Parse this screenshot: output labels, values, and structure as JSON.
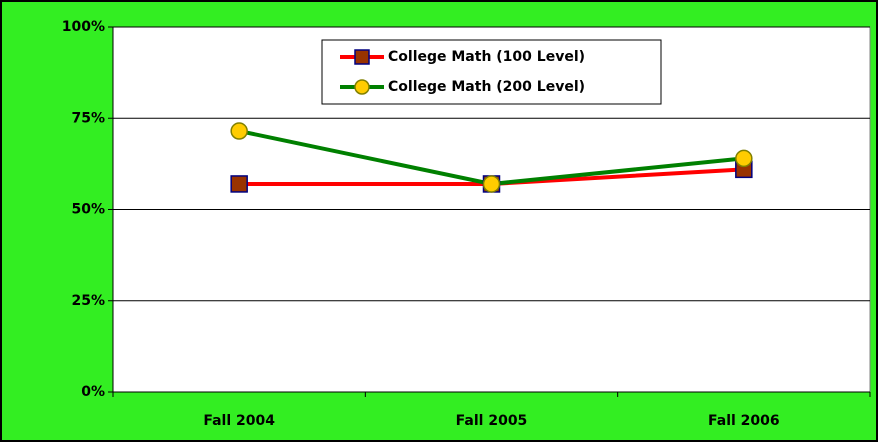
{
  "chart_data": {
    "type": "line",
    "categories": [
      "Fall 2004",
      "Fall 2005",
      "Fall 2006"
    ],
    "series": [
      {
        "name": "College Math (100 Level)",
        "color": "#ff0000",
        "marker": "square",
        "marker_color": "#993300",
        "values": [
          57,
          57,
          61
        ]
      },
      {
        "name": "College Math (200 Level)",
        "color": "#008000",
        "marker": "circle",
        "marker_color": "#ffcc00",
        "values": [
          71.5,
          57,
          64
        ]
      }
    ],
    "ylim": [
      0,
      100
    ],
    "yticks": [
      {
        "value": 0,
        "label": "0%"
      },
      {
        "value": 25,
        "label": "25%"
      },
      {
        "value": 50,
        "label": "50%"
      },
      {
        "value": 75,
        "label": "75%"
      },
      {
        "value": 100,
        "label": "100%"
      }
    ],
    "grid": true,
    "legend": "top"
  }
}
